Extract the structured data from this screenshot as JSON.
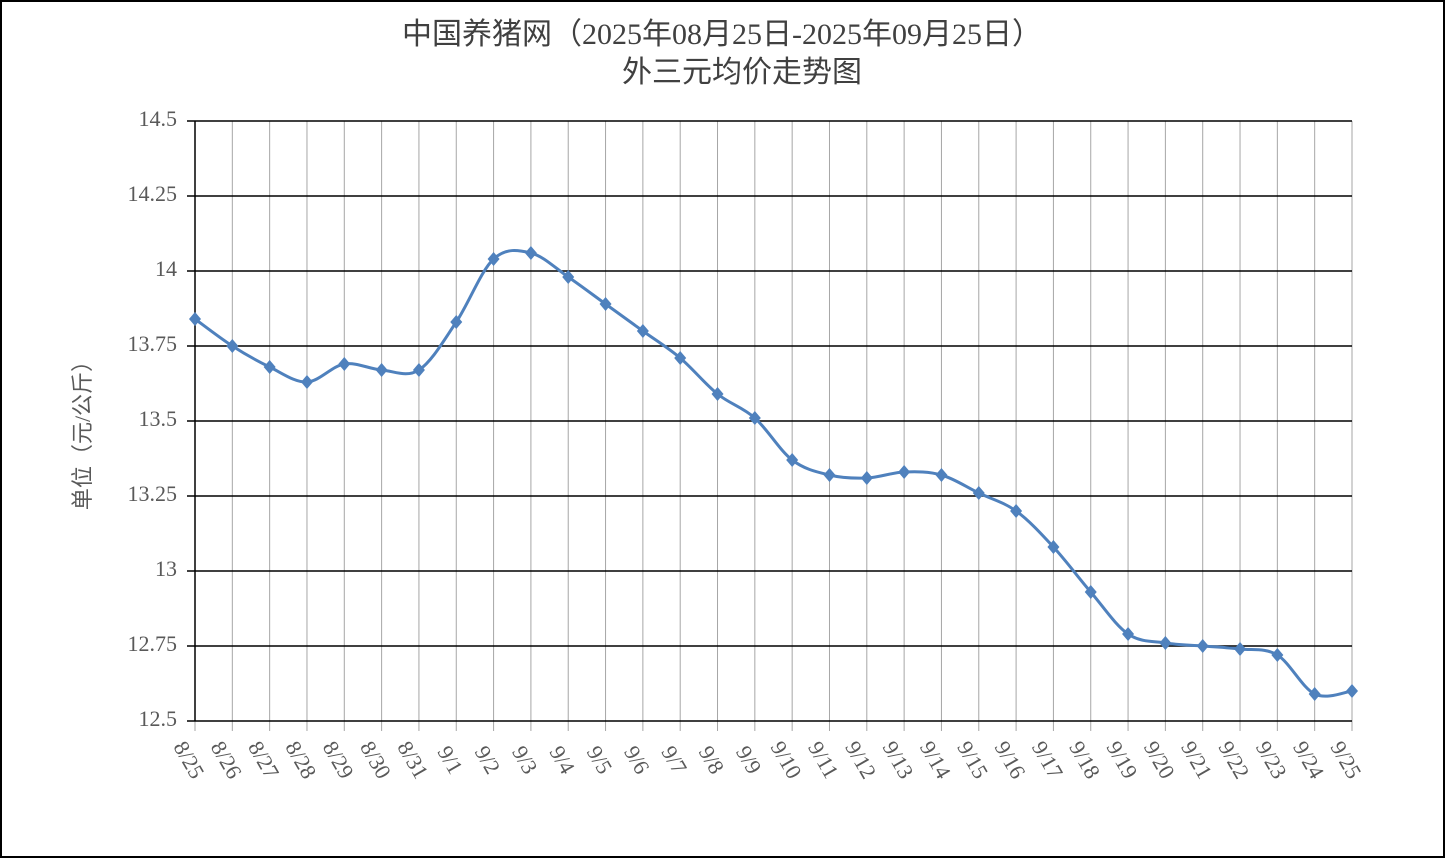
{
  "chart_data": {
    "type": "line",
    "title": [
      "中国养猪网（2025年08月25日-2025年09月25日）",
      "外三元均价走势图"
    ],
    "y_label": "单位（元/公斤）",
    "categories": [
      "8/25",
      "8/26",
      "8/27",
      "8/28",
      "8/29",
      "8/30",
      "8/31",
      "9/1",
      "9/2",
      "9/3",
      "9/4",
      "9/5",
      "9/6",
      "9/7",
      "9/8",
      "9/9",
      "9/10",
      "9/11",
      "9/12",
      "9/13",
      "9/14",
      "9/15",
      "9/16",
      "9/17",
      "9/18",
      "9/19",
      "9/20",
      "9/21",
      "9/22",
      "9/23",
      "9/24",
      "9/25"
    ],
    "series": [
      {
        "color": "#4f81bd",
        "values": [
          13.84,
          13.75,
          13.68,
          13.63,
          13.69,
          13.67,
          13.67,
          13.83,
          14.04,
          14.06,
          13.98,
          13.89,
          13.8,
          13.71,
          13.59,
          13.51,
          13.37,
          13.32,
          13.31,
          13.33,
          13.32,
          13.26,
          13.2,
          13.08,
          12.93,
          12.79,
          12.76,
          12.75,
          12.74,
          12.72,
          12.59,
          12.6
        ]
      }
    ],
    "ylim": [
      12.5,
      14.5
    ],
    "yticks": [
      14.5,
      14.25,
      14,
      13.75,
      13.5,
      13.25,
      13,
      12.75,
      12.5
    ],
    "grid": true
  }
}
